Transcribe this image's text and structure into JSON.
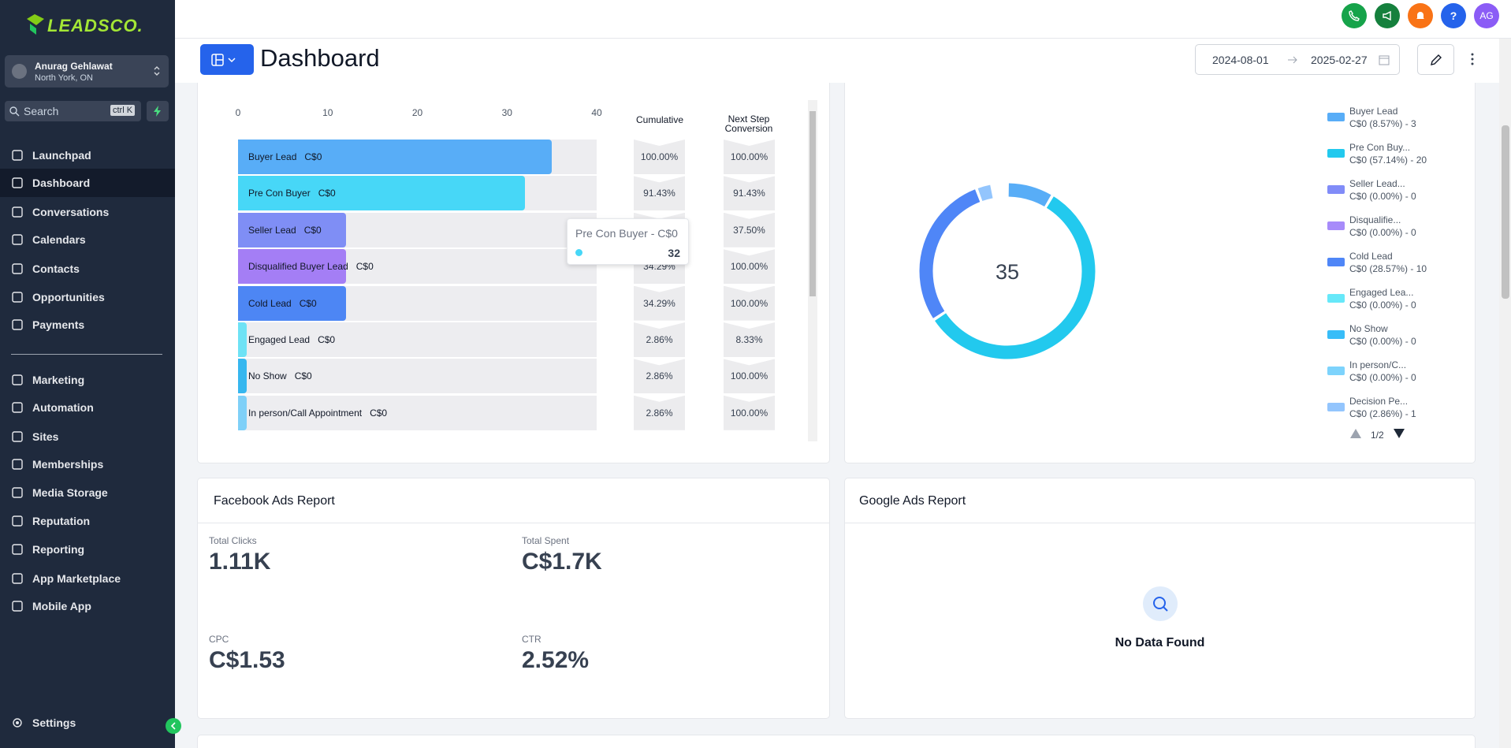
{
  "topbar": {
    "help": "?",
    "avatar": "AG"
  },
  "sidebar": {
    "brand": "LEADSCO.",
    "user": {
      "name": "Anurag Gehlawat",
      "location": "North York, ON"
    },
    "search": {
      "placeholder": "Search",
      "shortcut": "ctrl K"
    },
    "nav": [
      "Launchpad",
      "Dashboard",
      "Conversations",
      "Calendars",
      "Contacts",
      "Opportunities",
      "Payments"
    ],
    "nav2": [
      "Marketing",
      "Automation",
      "Sites",
      "Memberships",
      "Media Storage",
      "Reputation",
      "Reporting",
      "App Marketplace",
      "Mobile App"
    ],
    "settings": "Settings"
  },
  "header": {
    "title": "Dashboard",
    "date_from": "2024-08-01",
    "date_to": "2025-02-27"
  },
  "funnel": {
    "xlim": [
      0,
      40
    ],
    "xticks": [
      0,
      10,
      20,
      30,
      40
    ],
    "col_cumulative": "Cumulative",
    "col_next": "Next Step Conversion",
    "rows": [
      {
        "label": "Buyer Lead",
        "amount": "C$0",
        "value": 35,
        "color": "#58adf7",
        "cumulative": "100.00%",
        "next": "100.00%"
      },
      {
        "label": "Pre Con Buyer",
        "amount": "C$0",
        "value": 32,
        "color": "#47d7f7",
        "cumulative": "91.43%",
        "next": "91.43%"
      },
      {
        "label": "Seller Lead",
        "amount": "C$0",
        "value": 12,
        "color": "#7f8ef5",
        "cumulative": null,
        "next": "37.50%"
      },
      {
        "label": "Disqualified Buyer Lead",
        "amount": "C$0",
        "value": 12,
        "color": "#a47ef5",
        "cumulative": "34.29%",
        "next": "100.00%"
      },
      {
        "label": "Cold Lead",
        "amount": "C$0",
        "value": 12,
        "color": "#4d86f4",
        "cumulative": "34.29%",
        "next": "100.00%"
      },
      {
        "label": "Engaged Lead",
        "amount": "C$0",
        "value": 1,
        "color": "#6ee2f5",
        "cumulative": "2.86%",
        "next": "8.33%"
      },
      {
        "label": "No Show",
        "amount": "C$0",
        "value": 1,
        "color": "#36b7ef",
        "cumulative": "2.86%",
        "next": "100.00%"
      },
      {
        "label": "In person/Call Appointment",
        "amount": "C$0",
        "value": 1,
        "color": "#7fd0f8",
        "cumulative": "2.86%",
        "next": "100.00%"
      }
    ],
    "tooltip": {
      "title": "Pre Con Buyer - C$0",
      "value": 32
    }
  },
  "donut": {
    "total": 35,
    "page": "1/2",
    "legend": [
      {
        "name": "Buyer Lead",
        "detail": "C$0 (8.57%) - 3",
        "value": 3,
        "color": "#58adf7"
      },
      {
        "name": "Pre Con Buy...",
        "detail": "C$0 (57.14%) - 20",
        "value": 20,
        "color": "#22c9ee"
      },
      {
        "name": "Seller Lead...",
        "detail": "C$0 (0.00%) - 0",
        "value": 0,
        "color": "#818cf8"
      },
      {
        "name": "Disqualifie...",
        "detail": "C$0 (0.00%) - 0",
        "value": 0,
        "color": "#a78bfa"
      },
      {
        "name": "Cold Lead",
        "detail": "C$0 (28.57%) - 10",
        "value": 10,
        "color": "#4f86f7"
      },
      {
        "name": "Engaged Lea...",
        "detail": "C$0 (0.00%) - 0",
        "value": 0,
        "color": "#67e8f9"
      },
      {
        "name": "No Show",
        "detail": "C$0 (0.00%) - 0",
        "value": 0,
        "color": "#38bdf8"
      },
      {
        "name": "In person/C...",
        "detail": "C$0 (0.00%) - 0",
        "value": 0,
        "color": "#7dd3fc"
      },
      {
        "name": "Decision Pe...",
        "detail": "C$0 (2.86%) - 1",
        "value": 1,
        "color": "#93c5fd"
      }
    ]
  },
  "facebook": {
    "title": "Facebook Ads Report",
    "metrics": [
      {
        "label": "Total Clicks",
        "value": "1.11K"
      },
      {
        "label": "Total Spent",
        "value": "C$1.7K"
      },
      {
        "label": "CPC",
        "value": "C$1.53"
      },
      {
        "label": "CTR",
        "value": "2.52%"
      }
    ]
  },
  "google": {
    "title": "Google Ads Report",
    "empty": "No Data Found"
  }
}
